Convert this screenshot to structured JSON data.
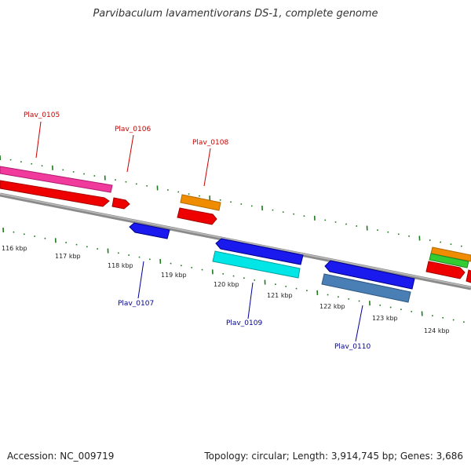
{
  "title": "Parvibaculum lavamentivorans DS-1, complete genome",
  "accession": "Accession: NC_009719",
  "summary": "Topology: circular; Length: 3,914,745 bp; Genes: 3,686",
  "colors": {
    "backbone": "#8a8a8a",
    "ticks": "#1f7a1f",
    "label_forward": "#cc0000",
    "label_reverse": "#000099"
  },
  "ticks": [
    "116 kbp",
    "117 kbp",
    "118 kbp",
    "119 kbp",
    "120 kbp",
    "121 kbp",
    "122 kbp",
    "123 kbp",
    "124 kbp"
  ],
  "gene_labels": [
    {
      "text": "Plav_0105",
      "strand": "forward"
    },
    {
      "text": "Plav_0106",
      "strand": "forward"
    },
    {
      "text": "Plav_0108",
      "strand": "forward"
    },
    {
      "text": "Plav_0107",
      "strand": "reverse"
    },
    {
      "text": "Plav_0109",
      "strand": "reverse"
    },
    {
      "text": "Plav_0110",
      "strand": "reverse"
    }
  ]
}
